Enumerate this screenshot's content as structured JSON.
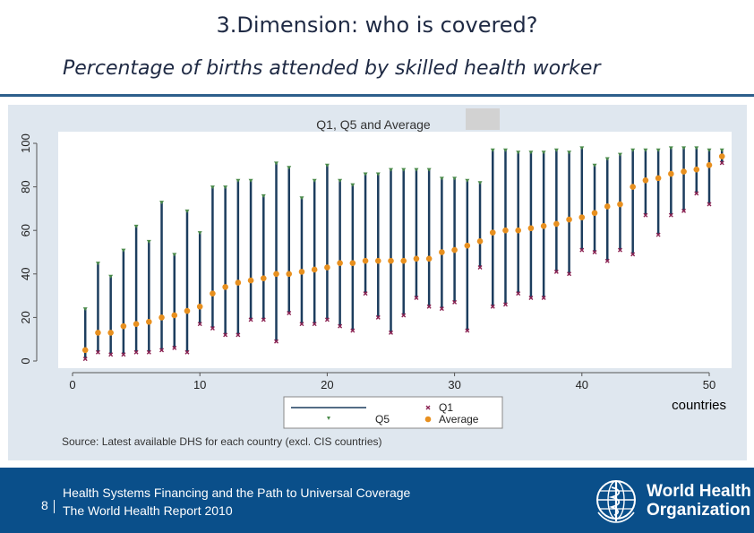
{
  "slide": {
    "title": "3.Dimension: who is covered?",
    "subtitle": "Percentage of births attended by skilled health worker"
  },
  "footer": {
    "page_number": "8",
    "line1": "Health Systems Financing and the Path to Universal Coverage",
    "line2": "The World Health Report 2010",
    "org_line1": "World Health",
    "org_line2": "Organization"
  },
  "colors": {
    "bar": "#1c3d5e",
    "q1_marker": "#8b2252",
    "q5_marker": "#4a8a4a",
    "average_marker": "#e8901f",
    "plot_bg": "#ffffff",
    "frame_bg": "#dfe7ef",
    "footer_bg": "#0a4f8a"
  },
  "chart_data": {
    "type": "scatter",
    "title": "Q1, Q5 and Average",
    "xlabel": "countries",
    "ylabel": "",
    "source": "Source: Latest available DHS for each country (excl. CIS countries)",
    "xlim": [
      0,
      52
    ],
    "ylim": [
      0,
      100
    ],
    "xticks": [
      0,
      10,
      20,
      30,
      40,
      50
    ],
    "yticks": [
      0,
      20,
      40,
      60,
      80,
      100
    ],
    "grid": false,
    "legend_position": "bottom",
    "legend": [
      {
        "key": "bar",
        "label": ""
      },
      {
        "key": "q1",
        "label": "Q1"
      },
      {
        "key": "q5",
        "label": "Q5"
      },
      {
        "key": "average",
        "label": "Average"
      }
    ],
    "x": [
      1,
      2,
      3,
      4,
      5,
      6,
      7,
      8,
      9,
      10,
      11,
      12,
      13,
      14,
      15,
      16,
      17,
      18,
      19,
      20,
      21,
      22,
      23,
      24,
      25,
      26,
      27,
      28,
      29,
      30,
      31,
      32,
      33,
      34,
      35,
      36,
      37,
      38,
      39,
      40,
      41,
      42,
      43,
      44,
      45,
      46,
      47,
      48,
      49,
      50,
      51
    ],
    "series": [
      {
        "name": "Q1",
        "values": [
          1,
          4,
          3,
          3,
          4,
          4,
          5,
          6,
          4,
          17,
          15,
          12,
          12,
          19,
          19,
          9,
          22,
          17,
          17,
          19,
          16,
          14,
          31,
          20,
          13,
          21,
          29,
          25,
          24,
          27,
          14,
          43,
          25,
          26,
          31,
          29,
          29,
          41,
          40,
          51,
          50,
          46,
          51,
          49,
          67,
          58,
          67,
          69,
          77,
          72,
          91
        ]
      },
      {
        "name": "Q5",
        "values": [
          24,
          45,
          39,
          51,
          62,
          55,
          73,
          49,
          69,
          59,
          80,
          80,
          83,
          83,
          76,
          91,
          89,
          75,
          83,
          90,
          83,
          81,
          86,
          86,
          88,
          88,
          88,
          88,
          84,
          84,
          83,
          82,
          97,
          97,
          96,
          96,
          96,
          97,
          96,
          98,
          90,
          93,
          95,
          97,
          97,
          97,
          98,
          98,
          98,
          97,
          97
        ]
      },
      {
        "name": "Average",
        "values": [
          5,
          13,
          13,
          16,
          17,
          18,
          20,
          21,
          23,
          25,
          31,
          34,
          36,
          37,
          38,
          40,
          40,
          41,
          42,
          43,
          45,
          45,
          46,
          46,
          46,
          46,
          47,
          47,
          50,
          51,
          53,
          55,
          59,
          60,
          60,
          61,
          62,
          63,
          65,
          66,
          68,
          71,
          72,
          80,
          83,
          84,
          86,
          87,
          88,
          90,
          94
        ]
      }
    ]
  }
}
